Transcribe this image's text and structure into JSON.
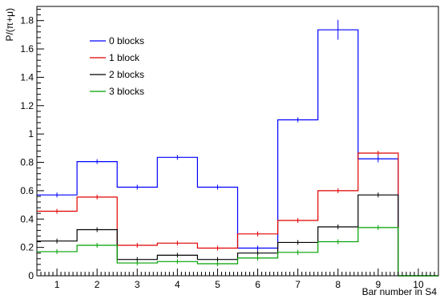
{
  "chart_data": {
    "type": "line",
    "xlabel": "Bar number in S4",
    "ylabel": "P/(π+μ)",
    "xlim": [
      0.5,
      10.5
    ],
    "ylim": [
      0,
      1.9
    ],
    "x_ticks": [
      1,
      2,
      3,
      4,
      5,
      6,
      7,
      8,
      9,
      10
    ],
    "y_ticks": [
      0,
      0.2,
      0.4,
      0.6,
      0.8,
      1,
      1.2,
      1.4,
      1.6,
      1.8
    ],
    "y_tick_labels": [
      "0",
      "0.2",
      "0.4",
      "0.6",
      "0.8",
      "1",
      "1.2",
      "1.4",
      "1.6",
      "1.8"
    ],
    "grid": false,
    "legend_position": "top-left",
    "x": [
      1,
      2,
      3,
      4,
      5,
      6,
      7,
      8,
      9,
      10
    ],
    "series": [
      {
        "name": "0 blocks",
        "color": "#0000ff",
        "values": [
          0.57,
          0.805,
          0.625,
          0.835,
          0.625,
          0.195,
          1.1,
          1.735,
          0.825,
          0
        ],
        "errors": [
          0.015,
          0.015,
          0.015,
          0.015,
          0.015,
          0.01,
          0.015,
          0.07,
          0.025,
          0
        ]
      },
      {
        "name": "1 block",
        "color": "#e00000",
        "values": [
          0.455,
          0.555,
          0.215,
          0.23,
          0.195,
          0.295,
          0.39,
          0.6,
          0.865,
          0
        ],
        "errors": [
          0.01,
          0.01,
          0.008,
          0.008,
          0.008,
          0.01,
          0.01,
          0.012,
          0.015,
          0
        ]
      },
      {
        "name": "2 blocks",
        "color": "#000000",
        "values": [
          0.245,
          0.325,
          0.115,
          0.145,
          0.115,
          0.16,
          0.235,
          0.345,
          0.57,
          0
        ],
        "errors": [
          0.008,
          0.008,
          0.006,
          0.006,
          0.006,
          0.007,
          0.008,
          0.01,
          0.015,
          0
        ]
      },
      {
        "name": "3 blocks",
        "color": "#00a000",
        "values": [
          0.17,
          0.215,
          0.09,
          0.1,
          0.085,
          0.125,
          0.165,
          0.24,
          0.34,
          0
        ],
        "errors": [
          0.006,
          0.006,
          0.005,
          0.005,
          0.005,
          0.006,
          0.006,
          0.008,
          0.012,
          0
        ]
      }
    ]
  }
}
